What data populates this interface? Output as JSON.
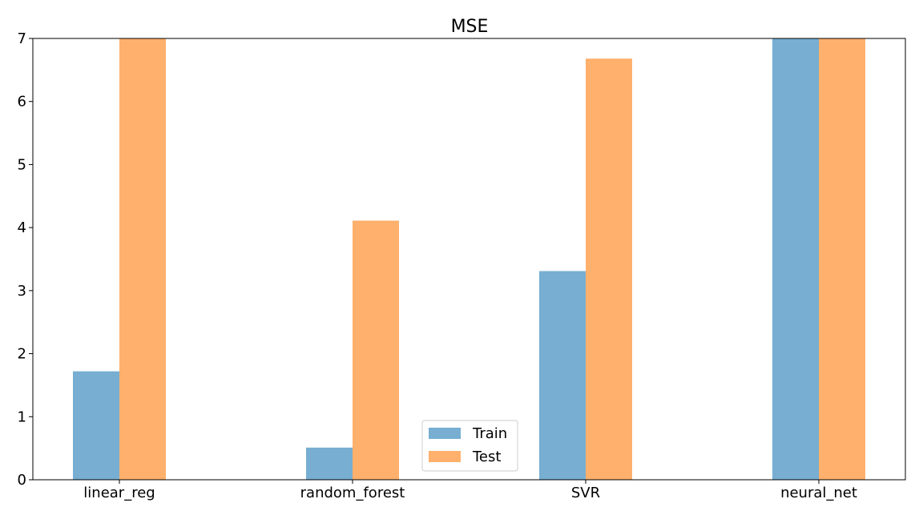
{
  "chart_data": {
    "type": "bar",
    "title": "MSE",
    "xlabel": "",
    "ylabel": "",
    "categories": [
      "linear_reg",
      "random_forest",
      "SVR",
      "neural_net"
    ],
    "series": [
      {
        "name": "Train",
        "color": "#77aed2",
        "values": [
          1.72,
          0.51,
          3.31,
          7.0
        ]
      },
      {
        "name": "Test",
        "color": "#feb06c",
        "values": [
          7.0,
          4.11,
          6.68,
          7.0
        ]
      }
    ],
    "ylim": [
      0,
      7
    ],
    "yticks": [
      "0",
      "1",
      "2",
      "3",
      "4",
      "5",
      "6",
      "7"
    ],
    "grid": false,
    "legend_position": "bottom-center"
  }
}
